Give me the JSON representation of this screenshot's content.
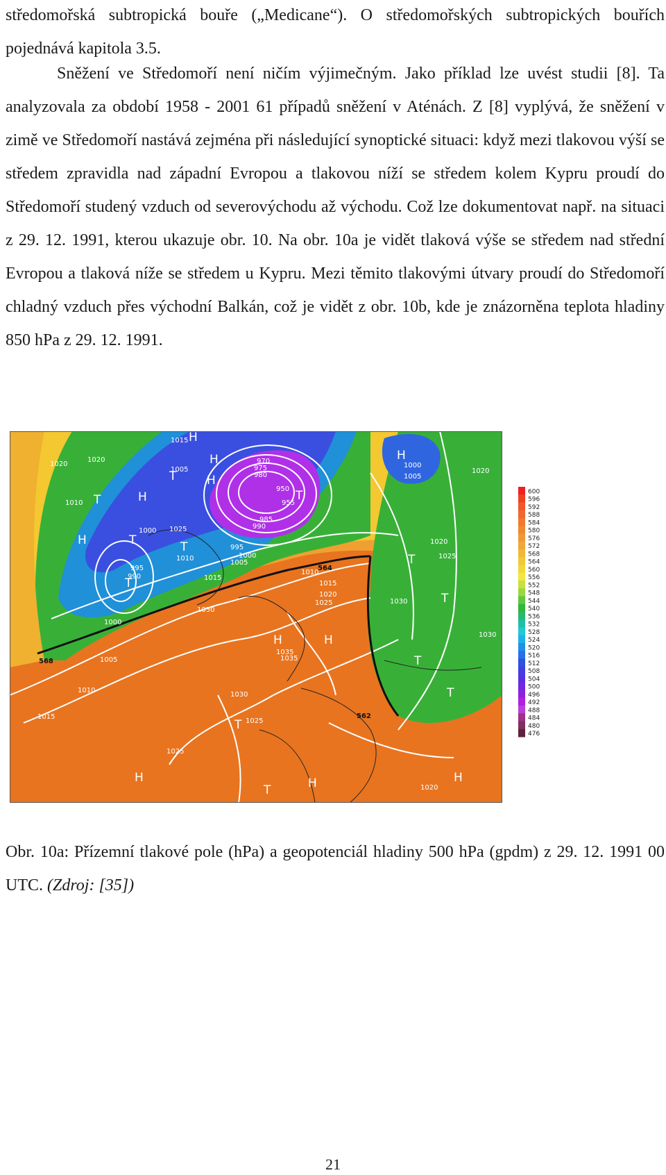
{
  "paragraphs": [
    "středomořská subtropická bouře („Medicane“). O středomořských subtropických bouřích pojednává kapitola 3.5.",
    "Sněžení ve Středomoří není ničím výjimečným. Jako příklad lze uvést studii [8]. Ta analyzovala za období 1958 - 2001 61 případů sněžení v Aténách. Z [8] vyplývá, že sněžení v zimě ve Středomoří nastává zejména při následující synoptické situaci: když mezi tlakovou výší  se středem zpravidla nad západní Evropou a tlakovou níží se středem kolem Kypru proudí do Středomoří studený vzduch od severovýchodu až východu. Což lze dokumentovat např. na situaci z 29. 12. 1991, kterou ukazuje obr. 10. Na obr. 10a je vidět tlaková výše se středem nad střední Evropou a tlaková níže se středem u Kypru. Mezi těmito tlakovými útvary proudí do Středomoří chladný vzduch přes východní Balkán, což je vidět z obr. 10b, kde je znázorněna teplota hladiny 850 hPa z 29. 12. 1991."
  ],
  "caption": {
    "text": "Obr. 10a: Přízemní tlakové pole (hPa) a geopotenciál  hladiny 500 hPa (gpdm) z 29. 12. 1991 00 UTC.",
    "source": "(Zdroj: [35])"
  },
  "map": {
    "isobar_labels": [
      "1015",
      "1020",
      "1005",
      "1010",
      "1000",
      "995",
      "990",
      "1025",
      "1030",
      "1035",
      "1020",
      "1015",
      "1010",
      "1005",
      "1000",
      "995",
      "990",
      "985",
      "980",
      "975",
      "970",
      "950",
      "955",
      "1010",
      "1015",
      "1020",
      "1025",
      "1030",
      "1000",
      "1005",
      "1020",
      "1025",
      "1030",
      "1015",
      "1025",
      "1020",
      "1010",
      "1000",
      "1005",
      "1035",
      "1030",
      "1025",
      "1020"
    ],
    "pressure_symbols": [
      "H",
      "H",
      "H",
      "T",
      "T",
      "T",
      "T",
      "H",
      "H",
      "T",
      "H",
      "H",
      "H",
      "T",
      "T",
      "T",
      "T",
      "H",
      "T",
      "H",
      "H",
      "T",
      "T"
    ],
    "contour_labels": [
      "568",
      "564",
      "562"
    ],
    "colors": {
      "low_purple": "#b020e0",
      "blue": "#3050e0",
      "cyan": "#20c0e0",
      "green": "#30b030",
      "yellow": "#f0e020",
      "orange": "#f0a020",
      "deep_orange": "#e06010"
    }
  },
  "legend": {
    "values": [
      "600",
      "596",
      "592",
      "588",
      "584",
      "580",
      "576",
      "572",
      "568",
      "564",
      "560",
      "556",
      "552",
      "548",
      "544",
      "540",
      "536",
      "532",
      "528",
      "524",
      "520",
      "516",
      "512",
      "508",
      "504",
      "500",
      "496",
      "492",
      "488",
      "484",
      "480",
      "476"
    ]
  },
  "page_number": "21"
}
